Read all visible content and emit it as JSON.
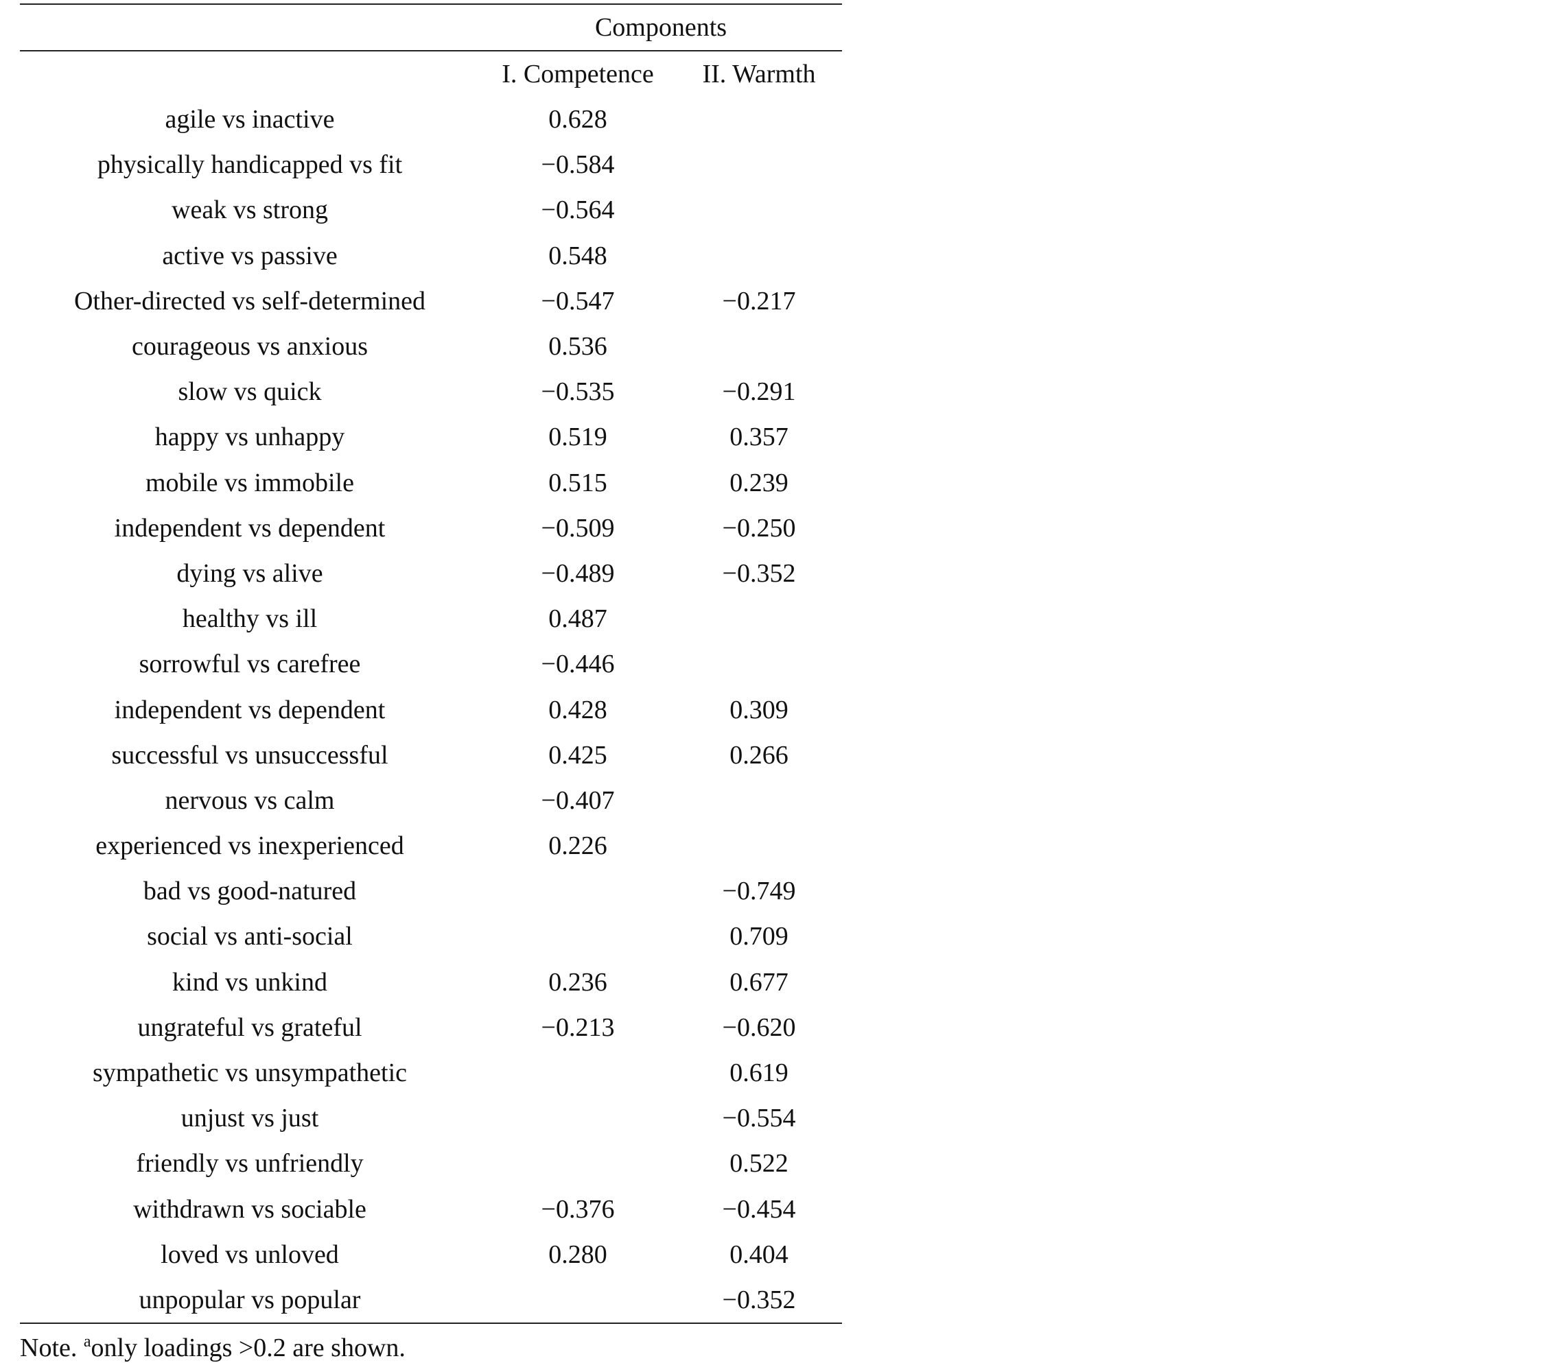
{
  "table": {
    "group_header": "Components",
    "columns": [
      "I. Competence",
      "II. Warmth"
    ],
    "rows": [
      {
        "label": "agile vs inactive",
        "competence": "0.628",
        "warmth": ""
      },
      {
        "label": "physically handicapped vs fit",
        "competence": "−0.584",
        "warmth": ""
      },
      {
        "label": "weak vs strong",
        "competence": "−0.564",
        "warmth": ""
      },
      {
        "label": "active vs passive",
        "competence": "0.548",
        "warmth": ""
      },
      {
        "label": "Other-directed vs self-determined",
        "competence": "−0.547",
        "warmth": "−0.217"
      },
      {
        "label": "courageous vs anxious",
        "competence": "0.536",
        "warmth": ""
      },
      {
        "label": "slow vs quick",
        "competence": "−0.535",
        "warmth": "−0.291"
      },
      {
        "label": "happy vs unhappy",
        "competence": "0.519",
        "warmth": "0.357"
      },
      {
        "label": "mobile vs immobile",
        "competence": "0.515",
        "warmth": "0.239"
      },
      {
        "label": "independent vs dependent",
        "competence": "−0.509",
        "warmth": "−0.250"
      },
      {
        "label": "dying vs alive",
        "competence": "−0.489",
        "warmth": "−0.352"
      },
      {
        "label": "healthy vs ill",
        "competence": "0.487",
        "warmth": ""
      },
      {
        "label": "sorrowful vs carefree",
        "competence": "−0.446",
        "warmth": ""
      },
      {
        "label": "independent vs dependent",
        "competence": "0.428",
        "warmth": "0.309"
      },
      {
        "label": "successful vs unsuccessful",
        "competence": "0.425",
        "warmth": "0.266"
      },
      {
        "label": "nervous vs calm",
        "competence": "−0.407",
        "warmth": ""
      },
      {
        "label": "experienced vs inexperienced",
        "competence": "0.226",
        "warmth": ""
      },
      {
        "label": "bad vs good-natured",
        "competence": "",
        "warmth": "−0.749"
      },
      {
        "label": "social vs anti-social",
        "competence": "",
        "warmth": "0.709"
      },
      {
        "label": "kind vs unkind",
        "competence": "0.236",
        "warmth": "0.677"
      },
      {
        "label": "ungrateful vs grateful",
        "competence": "−0.213",
        "warmth": "−0.620"
      },
      {
        "label": "sympathetic vs unsympathetic",
        "competence": "",
        "warmth": "0.619"
      },
      {
        "label": "unjust vs just",
        "competence": "",
        "warmth": "−0.554"
      },
      {
        "label": "friendly vs unfriendly",
        "competence": "",
        "warmth": "0.522"
      },
      {
        "label": "withdrawn vs sociable",
        "competence": "−0.376",
        "warmth": "−0.454"
      },
      {
        "label": "loved vs unloved",
        "competence": "0.280",
        "warmth": "0.404"
      },
      {
        "label": "unpopular vs popular",
        "competence": "",
        "warmth": "−0.352"
      }
    ]
  },
  "note": {
    "prefix": "Note. ",
    "superscript": "a",
    "text": "only loadings >0.2 are shown."
  }
}
